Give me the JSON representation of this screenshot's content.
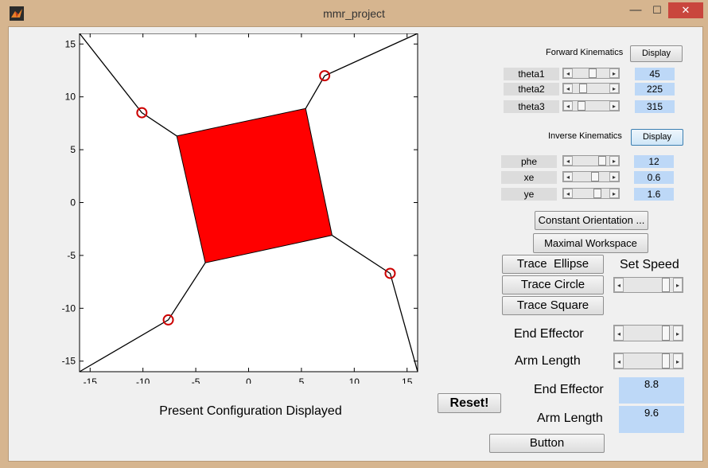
{
  "window": {
    "title": "mmr_project",
    "minimize": "—",
    "maximize": "☐",
    "close": "✕"
  },
  "plot": {
    "caption": "Present Configuration Displayed",
    "xticks": [
      "-15",
      "-10",
      "-5",
      "0",
      "5",
      "10",
      "15"
    ],
    "yticks": [
      "15",
      "10",
      "5",
      "0",
      "-5",
      "-10",
      "-15"
    ],
    "xrange": [
      -16,
      16
    ],
    "yrange": [
      -16,
      16
    ],
    "square": [
      [
        -6.8,
        6.3
      ],
      [
        5.4,
        8.9
      ],
      [
        7.9,
        -3.1
      ],
      [
        -4.1,
        -5.7
      ]
    ],
    "legs": [
      {
        "base": [
          -16,
          16
        ],
        "joint": [
          -10.1,
          8.5
        ],
        "end": [
          -6.8,
          6.3
        ]
      },
      {
        "base": [
          16,
          16
        ],
        "joint": [
          7.2,
          12.0
        ],
        "end": [
          5.4,
          8.9
        ]
      },
      {
        "base": [
          16,
          -16
        ],
        "joint": [
          13.4,
          -6.7
        ],
        "end": [
          7.9,
          -3.1
        ]
      },
      {
        "base": [
          -16,
          -16
        ],
        "joint": [
          -7.6,
          -11.1
        ],
        "end": [
          -4.1,
          -5.7
        ]
      }
    ],
    "fill_color": "#ff0000",
    "joint_color": "#cc0000"
  },
  "forward": {
    "title": "Forward Kinematics",
    "display": "Display",
    "rows": [
      {
        "label": "theta1",
        "value": "45"
      },
      {
        "label": "theta2",
        "value": "225"
      },
      {
        "label": "theta3",
        "value": "315"
      }
    ]
  },
  "inverse": {
    "title": "Inverse Kinematics",
    "display": "Display",
    "rows": [
      {
        "label": "phe",
        "value": "12"
      },
      {
        "label": "xe",
        "value": "0.6"
      },
      {
        "label": "ye",
        "value": "1.6"
      }
    ]
  },
  "buttons": {
    "constant": "Constant Orientation ...",
    "maximal": "Maximal Workspace",
    "ellipse": "Trace  Ellipse",
    "circle": "Trace Circle",
    "square": "Trace Square",
    "reset": "Reset!",
    "button": "Button"
  },
  "controls": {
    "set_speed": "Set Speed",
    "end_effector": "End Effector",
    "arm_length": "Arm Length",
    "end_effector_out": "End Effector",
    "arm_length_out": "Arm Length",
    "end_effector_value": "8.8",
    "arm_length_value": "9.6"
  },
  "colors": {
    "value_bg": "#bdd8f7",
    "window_frame": "#d6b58f",
    "close": "#c9463d"
  },
  "icons": {
    "app": "matlab-icon"
  }
}
